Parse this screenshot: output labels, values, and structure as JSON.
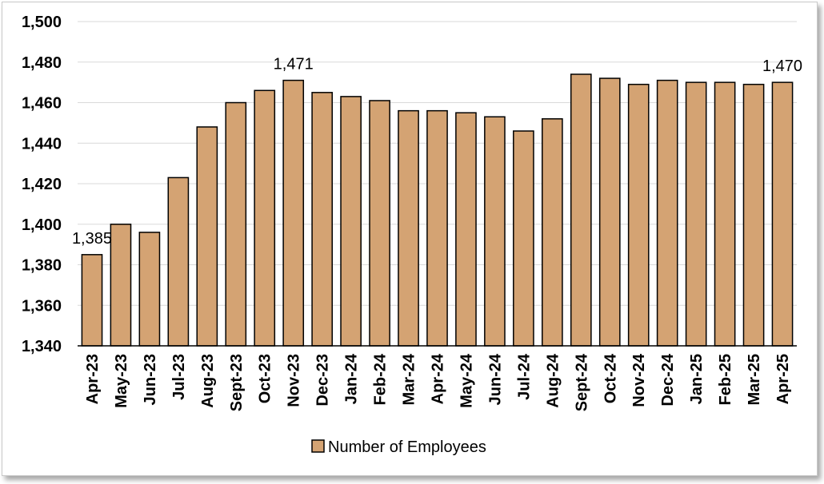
{
  "chart_data": {
    "type": "bar",
    "title": "",
    "xlabel": "",
    "ylabel": "",
    "ylim": [
      1340,
      1500
    ],
    "ytick_step": 20,
    "grid": "horizontal",
    "legend_position": "bottom",
    "bar_color": "#D4A373",
    "categories": [
      "Apr-23",
      "May-23",
      "Jun-23",
      "Jul-23",
      "Aug-23",
      "Sept-23",
      "Oct-23",
      "Nov-23",
      "Dec-23",
      "Jan-24",
      "Feb-24",
      "Mar-24",
      "Apr-24",
      "May-24",
      "Jun-24",
      "Jul-24",
      "Aug-24",
      "Sept-24",
      "Oct-24",
      "Nov-24",
      "Dec-24",
      "Jan-25",
      "Feb-25",
      "Mar-25",
      "Apr-25"
    ],
    "series": [
      {
        "name": "Number of Employees",
        "values": [
          1385,
          1400,
          1396,
          1423,
          1448,
          1460,
          1466,
          1471,
          1465,
          1463,
          1461,
          1456,
          1456,
          1455,
          1453,
          1446,
          1452,
          1474,
          1472,
          1469,
          1471,
          1470,
          1470,
          1469,
          1470
        ]
      }
    ],
    "data_labels": [
      {
        "category": "Apr-23",
        "text": "1,385"
      },
      {
        "category": "Nov-23",
        "text": "1,471"
      },
      {
        "category": "Apr-25",
        "text": "1,470"
      }
    ]
  }
}
